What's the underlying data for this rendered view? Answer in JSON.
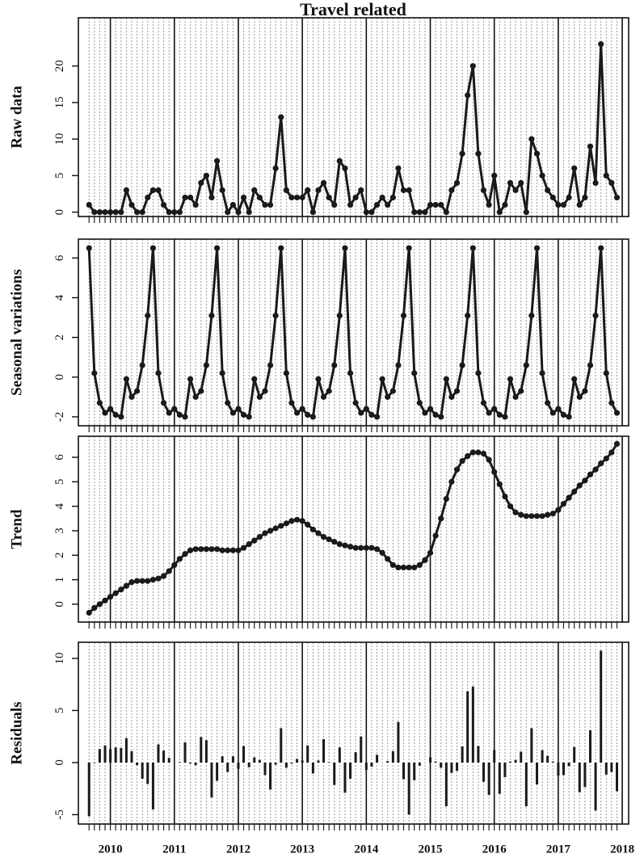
{
  "chart_data": {
    "type": "multi",
    "title": "Travel related",
    "color": "#1a1a1a",
    "grid": true,
    "x": [
      2009.667,
      2009.75,
      2009.833,
      2009.917,
      2010.0,
      2010.083,
      2010.167,
      2010.25,
      2010.333,
      2010.417,
      2010.5,
      2010.583,
      2010.667,
      2010.75,
      2010.833,
      2010.917,
      2011.0,
      2011.083,
      2011.167,
      2011.25,
      2011.333,
      2011.417,
      2011.5,
      2011.583,
      2011.667,
      2011.75,
      2011.833,
      2011.917,
      2012.0,
      2012.083,
      2012.167,
      2012.25,
      2012.333,
      2012.417,
      2012.5,
      2012.583,
      2012.667,
      2012.75,
      2012.833,
      2012.917,
      2013.0,
      2013.083,
      2013.167,
      2013.25,
      2013.333,
      2013.417,
      2013.5,
      2013.583,
      2013.667,
      2013.75,
      2013.833,
      2013.917,
      2014.0,
      2014.083,
      2014.167,
      2014.25,
      2014.333,
      2014.417,
      2014.5,
      2014.583,
      2014.667,
      2014.75,
      2014.833,
      2014.917,
      2015.0,
      2015.083,
      2015.167,
      2015.25,
      2015.333,
      2015.417,
      2015.5,
      2015.583,
      2015.667,
      2015.75,
      2015.833,
      2015.917,
      2016.0,
      2016.083,
      2016.167,
      2016.25,
      2016.333,
      2016.417,
      2016.5,
      2016.583,
      2016.667,
      2016.75,
      2016.833,
      2016.917,
      2017.0,
      2017.083,
      2017.167,
      2017.25,
      2017.333,
      2017.417,
      2017.5,
      2017.583,
      2017.667,
      2017.75,
      2017.833,
      2017.917
    ],
    "xlim": [
      2009.5,
      2018.1
    ],
    "xticks": [
      2010,
      2011,
      2012,
      2013,
      2014,
      2015,
      2016,
      2017,
      2018
    ],
    "panels": [
      {
        "type": "line",
        "ylabel": "Raw data",
        "ylim": [
          -0.6,
          26.6
        ],
        "yticks": [
          0,
          5,
          10,
          15,
          20
        ],
        "values": [
          1,
          0,
          0,
          0,
          0,
          0,
          0,
          3,
          1,
          0,
          0,
          2,
          3,
          3,
          1,
          0,
          0,
          0,
          2,
          2,
          1,
          4,
          5,
          2,
          7,
          3,
          0,
          1,
          0,
          2,
          0,
          3,
          2,
          1,
          1,
          6,
          13,
          3,
          2,
          2,
          2,
          3,
          0,
          3,
          4,
          2,
          1,
          7,
          6,
          1,
          2,
          3,
          0,
          0,
          1,
          2,
          1,
          2,
          6,
          3,
          3,
          0,
          0,
          0,
          1,
          1,
          1,
          0,
          3,
          4,
          8,
          16,
          20,
          8,
          3,
          1,
          5,
          0,
          1,
          4,
          3,
          4,
          0,
          10,
          8,
          5,
          3,
          2,
          1,
          1,
          2,
          6,
          1,
          2,
          9,
          4,
          23,
          5,
          4,
          2
        ]
      },
      {
        "type": "line",
        "ylabel": "Seasonal variations",
        "ylim": [
          -2.45,
          6.95
        ],
        "yticks": [
          -2,
          0,
          2,
          4,
          6
        ],
        "values": [
          6.5,
          0.2,
          -1.3,
          -1.8,
          -1.6,
          -1.9,
          -2.0,
          -0.1,
          -1.0,
          -0.7,
          0.6,
          3.1,
          6.5,
          0.2,
          -1.3,
          -1.8,
          -1.6,
          -1.9,
          -2.0,
          -0.1,
          -1.0,
          -0.7,
          0.6,
          3.1,
          6.5,
          0.2,
          -1.3,
          -1.8,
          -1.6,
          -1.9,
          -2.0,
          -0.1,
          -1.0,
          -0.7,
          0.6,
          3.1,
          6.5,
          0.2,
          -1.3,
          -1.8,
          -1.6,
          -1.9,
          -2.0,
          -0.1,
          -1.0,
          -0.7,
          0.6,
          3.1,
          6.5,
          0.2,
          -1.3,
          -1.8,
          -1.6,
          -1.9,
          -2.0,
          -0.1,
          -1.0,
          -0.7,
          0.6,
          3.1,
          6.5,
          0.2,
          -1.3,
          -1.8,
          -1.6,
          -1.9,
          -2.0,
          -0.1,
          -1.0,
          -0.7,
          0.6,
          3.1,
          6.5,
          0.2,
          -1.3,
          -1.8,
          -1.6,
          -1.9,
          -2.0,
          -0.1,
          -1.0,
          -0.7,
          0.6,
          3.1,
          6.5,
          0.2,
          -1.3,
          -1.8,
          -1.6,
          -1.9,
          -2.0,
          -0.1,
          -1.0,
          -0.7,
          0.6,
          3.1,
          6.5,
          0.2,
          -1.3,
          -1.8
        ]
      },
      {
        "type": "line",
        "ylabel": "Trend",
        "ylim": [
          -0.73,
          6.86
        ],
        "yticks": [
          0,
          1,
          2,
          3,
          4,
          5,
          6
        ],
        "values": [
          -0.35,
          -0.15,
          0.0,
          0.15,
          0.3,
          0.45,
          0.6,
          0.75,
          0.9,
          0.95,
          0.95,
          0.95,
          1.0,
          1.05,
          1.15,
          1.35,
          1.6,
          1.85,
          2.05,
          2.2,
          2.25,
          2.25,
          2.25,
          2.25,
          2.25,
          2.2,
          2.2,
          2.2,
          2.2,
          2.3,
          2.45,
          2.6,
          2.75,
          2.9,
          3.0,
          3.1,
          3.2,
          3.3,
          3.4,
          3.45,
          3.4,
          3.25,
          3.05,
          2.9,
          2.75,
          2.65,
          2.55,
          2.45,
          2.4,
          2.35,
          2.3,
          2.3,
          2.3,
          2.3,
          2.25,
          2.1,
          1.85,
          1.6,
          1.5,
          1.5,
          1.5,
          1.5,
          1.6,
          1.8,
          2.1,
          2.8,
          3.5,
          4.3,
          5.0,
          5.5,
          5.85,
          6.05,
          6.2,
          6.2,
          6.15,
          5.9,
          5.4,
          4.9,
          4.4,
          4.0,
          3.75,
          3.65,
          3.6,
          3.6,
          3.6,
          3.6,
          3.65,
          3.7,
          3.85,
          4.1,
          4.35,
          4.6,
          4.85,
          5.05,
          5.3,
          5.5,
          5.75,
          5.95,
          6.2,
          6.55
        ]
      },
      {
        "type": "bar",
        "ylabel": "Residuals",
        "ylim": [
          -5.9,
          11.55
        ],
        "yticks": [
          -5,
          0,
          5,
          10
        ],
        "values": [
          -5.15,
          -0.05,
          1.3,
          1.65,
          1.3,
          1.45,
          1.4,
          2.35,
          1.1,
          -0.25,
          -1.55,
          -2.05,
          -4.5,
          1.75,
          1.15,
          0.45,
          0,
          0.05,
          1.95,
          -0.1,
          -0.25,
          2.45,
          2.15,
          -3.35,
          -1.75,
          0.6,
          -0.9,
          0.6,
          -0.6,
          1.6,
          -0.45,
          0.5,
          0.25,
          -1.2,
          -2.6,
          -0.2,
          3.3,
          -0.5,
          -0.1,
          0.35,
          0.2,
          1.65,
          -1.05,
          0.2,
          2.25,
          0.05,
          -2.15,
          1.45,
          -2.9,
          -1.55,
          1.0,
          2.5,
          -0.7,
          -0.4,
          0.75,
          0,
          0.15,
          1.1,
          3.9,
          -1.6,
          -5.0,
          -1.7,
          -0.3,
          0,
          0.5,
          0.1,
          -0.5,
          -4.2,
          -1.0,
          -0.8,
          1.55,
          6.85,
          7.3,
          1.6,
          -1.85,
          -3.1,
          1.2,
          -3.0,
          -1.4,
          0.1,
          0.25,
          1.05,
          -4.2,
          3.3,
          -2.1,
          1.2,
          0.65,
          0.1,
          -1.25,
          -1.2,
          -0.35,
          1.5,
          -2.85,
          -2.35,
          3.1,
          -4.6,
          10.75,
          -1.15,
          -0.9,
          -2.75
        ]
      }
    ]
  }
}
